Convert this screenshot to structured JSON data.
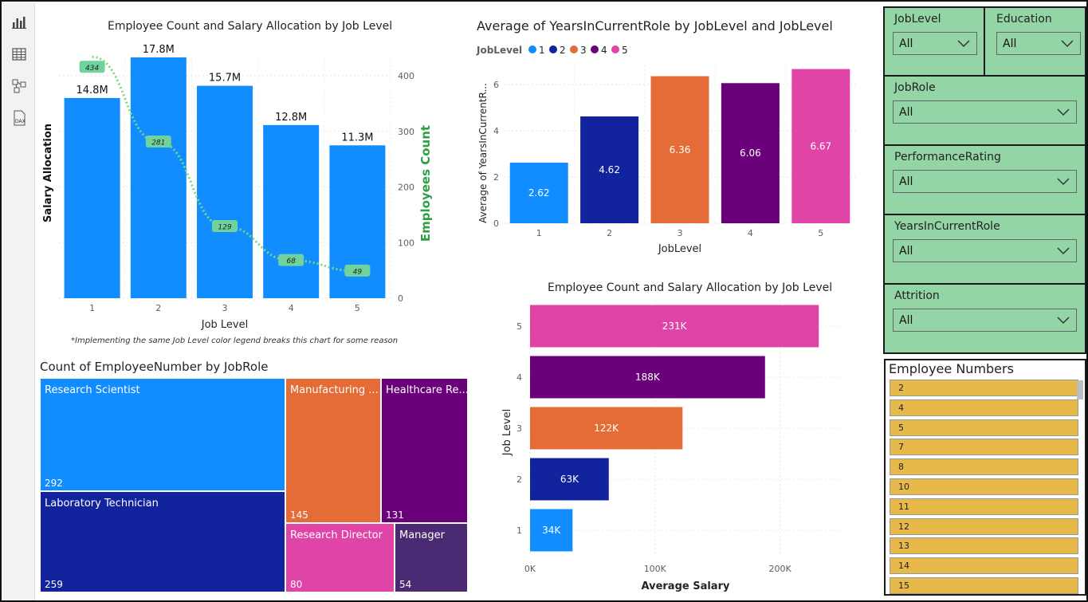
{
  "rail": {
    "icons": [
      "report-view-icon",
      "table-view-icon",
      "model-view-icon",
      "dax-query-icon"
    ],
    "dax_label": "DAX"
  },
  "combo_chart": {
    "title": "Employee Count and Salary Allocation by Job Level",
    "xlabel": "Job Level",
    "ylabel_left": "Salary Allocation",
    "ylabel_right": "Employees Count",
    "footnote": "*Implementing the same Job Level color legend breaks this chart for some reason",
    "bar_color": "#118dff",
    "line_color": "#7ad97f"
  },
  "treemap": {
    "title": "Count of EmployeeNumber by JobRole",
    "cells": [
      {
        "label": "Research Scientist",
        "value": "292",
        "color": "#118dff"
      },
      {
        "label": "Laboratory Technician",
        "value": "259",
        "color": "#12239e"
      },
      {
        "label": "Manufacturing ...",
        "value": "145",
        "color": "#e66c37"
      },
      {
        "label": "Healthcare Re...",
        "value": "131",
        "color": "#6b007b"
      },
      {
        "label": "Research Director",
        "value": "80",
        "color": "#e044a7"
      },
      {
        "label": "Manager",
        "value": "54",
        "color": "#4a2a72"
      }
    ]
  },
  "years_chart": {
    "title": "Average of YearsInCurrentRole by JobLevel and JobLevel",
    "legend_title": "JobLevel",
    "xlabel": "JobLevel",
    "ylabel": "Average of YearsInCurrentR..."
  },
  "salary_chart": {
    "title": "Employee Count and Salary Allocation by Job Level",
    "xlabel": "Average Salary",
    "ylabel": "Job Level"
  },
  "slicers": [
    {
      "label": "JobLevel",
      "value": "All"
    },
    {
      "label": "Education",
      "value": "All"
    },
    {
      "label": "JobRole",
      "value": "All"
    },
    {
      "label": "PerformanceRating",
      "value": "All"
    },
    {
      "label": "YearsInCurrentRole",
      "value": "All"
    },
    {
      "label": "Attrition",
      "value": "All"
    }
  ],
  "employee_numbers": {
    "title": "Employee Numbers",
    "items": [
      "2",
      "4",
      "5",
      "7",
      "8",
      "10",
      "11",
      "12",
      "13",
      "14",
      "15"
    ],
    "color": "#e6b94a"
  },
  "chart_data": [
    {
      "type": "bar",
      "title": "Employee Count and Salary Allocation by Job Level",
      "xlabel": "Job Level",
      "ylabel": "Salary Allocation",
      "categories": [
        "1",
        "2",
        "3",
        "4",
        "5"
      ],
      "series": [
        {
          "name": "Salary Allocation",
          "type": "bar",
          "values": [
            14.8,
            17.8,
            15.7,
            12.8,
            11.3
          ],
          "labels": [
            "14.8M",
            "17.8M",
            "15.7M",
            "12.8M",
            "11.3M"
          ]
        },
        {
          "name": "Employees Count",
          "type": "line",
          "axis": "right",
          "values": [
            434,
            281,
            129,
            68,
            49
          ]
        }
      ],
      "ylim": [
        0,
        17.8
      ],
      "y2lim": [
        0,
        400
      ],
      "y2ticks": [
        0,
        100,
        200,
        300,
        400
      ],
      "grid": true
    },
    {
      "type": "bar",
      "title": "Average of YearsInCurrentRole by JobLevel and JobLevel",
      "xlabel": "JobLevel",
      "ylabel": "Average of YearsInCurrentR...",
      "categories": [
        "1",
        "2",
        "3",
        "4",
        "5"
      ],
      "values": [
        2.62,
        4.62,
        6.36,
        6.06,
        6.67
      ],
      "colors": [
        "#118dff",
        "#12239e",
        "#e66c37",
        "#6b007b",
        "#e044a7"
      ],
      "legend": [
        "1",
        "2",
        "3",
        "4",
        "5"
      ],
      "legend_position": "top-left",
      "ylim": [
        0,
        7
      ],
      "yticks": [
        0,
        2,
        4,
        6
      ],
      "grid": true
    },
    {
      "type": "bar",
      "orientation": "horizontal",
      "title": "Employee Count and Salary Allocation by Job Level",
      "xlabel": "Average Salary",
      "ylabel": "Job Level",
      "categories": [
        "5",
        "4",
        "3",
        "2",
        "1"
      ],
      "values": [
        231,
        188,
        122,
        63,
        34
      ],
      "labels": [
        "231K",
        "188K",
        "122K",
        "63K",
        "34K"
      ],
      "colors": [
        "#e044a7",
        "#6b007b",
        "#e66c37",
        "#12239e",
        "#118dff"
      ],
      "xlim": [
        0,
        250
      ],
      "xticks": [
        "0K",
        "100K",
        "200K"
      ],
      "grid": true
    },
    {
      "type": "table",
      "title": "Count of EmployeeNumber by JobRole",
      "categories": [
        "Research Scientist",
        "Laboratory Technician",
        "Manufacturing ...",
        "Healthcare Re...",
        "Research Director",
        "Manager"
      ],
      "values": [
        292,
        259,
        145,
        131,
        80,
        54
      ]
    }
  ]
}
